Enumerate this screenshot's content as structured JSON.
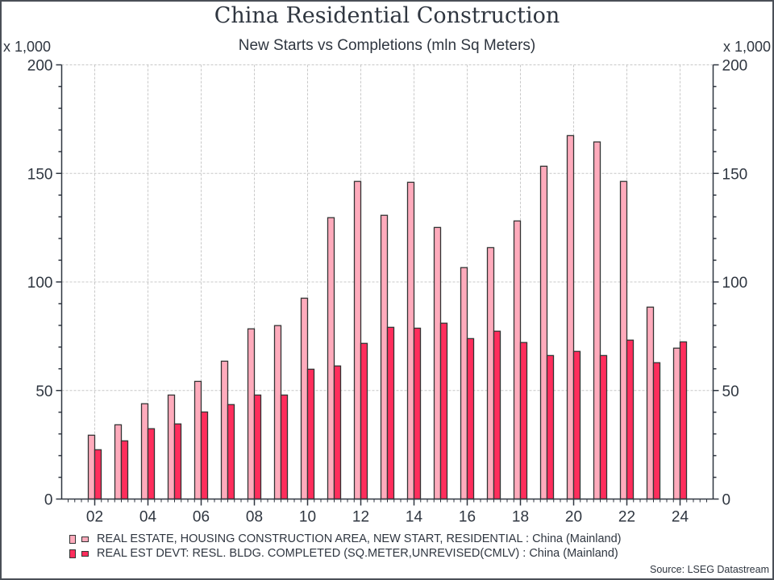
{
  "chart_data": {
    "type": "bar",
    "title": "China Residential Construction",
    "subtitle": "New Starts vs Completions (mln Sq Meters)",
    "y_unit_label_left": "x 1,000",
    "y_unit_label_right": "x 1,000",
    "xlabel": "",
    "ylabel": "",
    "ylim": [
      0,
      200
    ],
    "yticks": [
      0,
      50,
      100,
      150,
      200
    ],
    "ytick_labels": [
      "0",
      "50",
      "100",
      "150",
      "200"
    ],
    "xlim": [
      2001,
      2025
    ],
    "xticks": [
      2002,
      2004,
      2006,
      2008,
      2010,
      2012,
      2014,
      2016,
      2018,
      2020,
      2022,
      2024
    ],
    "xtick_labels": [
      "02",
      "04",
      "06",
      "08",
      "10",
      "12",
      "14",
      "16",
      "18",
      "20",
      "22",
      "24"
    ],
    "grid": true,
    "categories": [
      2002,
      2003,
      2004,
      2005,
      2006,
      2007,
      2008,
      2009,
      2010,
      2011,
      2012,
      2013,
      2014,
      2015,
      2016,
      2017,
      2018,
      2019,
      2020,
      2021,
      2022,
      2023,
      2024
    ],
    "series": [
      {
        "name": "REAL ESTATE, HOUSING CONSTRUCTION AREA, NEW START, RESIDENTIAL : China (Mainland)",
        "color": "#ffabbc",
        "values": [
          29.4,
          34.2,
          43.9,
          47.9,
          54.2,
          63.5,
          78.4,
          79.9,
          92.5,
          129.6,
          146.3,
          130.7,
          145.9,
          125.1,
          106.6,
          115.8,
          128.1,
          153.3,
          167.4,
          164.5,
          146.3,
          88.4,
          69.5
        ]
      },
      {
        "name": "REAL EST DEVT: RESL. BLDG. COMPLETED (SQ.METER,UNREVISED(CMLV) : China (Mainland)",
        "color": "#ff2d5c",
        "values": [
          22.7,
          26.8,
          32.4,
          34.6,
          40.1,
          43.5,
          47.9,
          47.9,
          59.8,
          61.3,
          71.7,
          79.1,
          78.7,
          81.0,
          73.9,
          77.3,
          72.1,
          66.1,
          68.0,
          66.1,
          73.2,
          62.8,
          72.4
        ]
      }
    ],
    "legend_position": "bottom-left",
    "source": "Source: LSEG Datastream"
  }
}
